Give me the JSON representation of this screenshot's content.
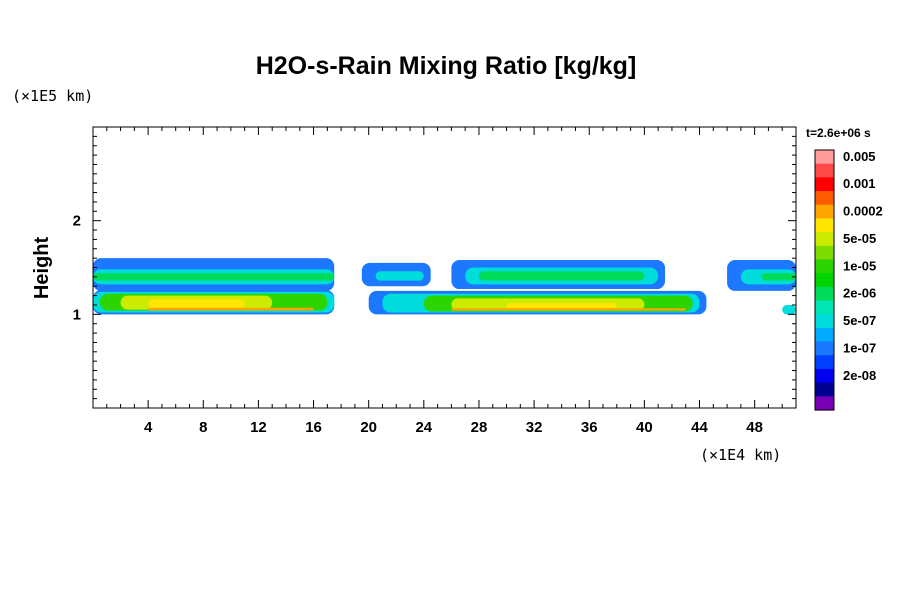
{
  "chart_data": {
    "type": "heatmap",
    "title": "H2O-s-Rain Mixing Ratio [kg/kg]",
    "ylabel": "Height",
    "yunit": "(×1E5 km)",
    "xunit": "(×1E4 km)",
    "time_label": "t=2.6e+06 s",
    "xlim": [
      0,
      51
    ],
    "ylim": [
      0,
      3
    ],
    "xticks": [
      4,
      8,
      12,
      16,
      20,
      24,
      28,
      32,
      36,
      40,
      44,
      48
    ],
    "yticks": [
      1,
      2
    ],
    "xtick_labels": [
      "4",
      "8",
      "12",
      "16",
      "20",
      "24",
      "28",
      "32",
      "36",
      "40",
      "44",
      "48"
    ],
    "ytick_labels": [
      "1",
      "2"
    ],
    "colorbar": {
      "levels": [
        {
          "color": "#ff9c9c",
          "label": "0.005"
        },
        {
          "color": "#ff4a4a",
          "label": ""
        },
        {
          "color": "#ff0000",
          "label": "0.001"
        },
        {
          "color": "#ff5a00",
          "label": ""
        },
        {
          "color": "#ffa500",
          "label": "0.0002"
        },
        {
          "color": "#ffe600",
          "label": ""
        },
        {
          "color": "#cbec00",
          "label": "5e-05"
        },
        {
          "color": "#7cdc00",
          "label": ""
        },
        {
          "color": "#2cd400",
          "label": "1e-05"
        },
        {
          "color": "#00d400",
          "label": ""
        },
        {
          "color": "#00dc5a",
          "label": "2e-06"
        },
        {
          "color": "#00e6b4",
          "label": ""
        },
        {
          "color": "#00dcdc",
          "label": "5e-07"
        },
        {
          "color": "#00aaff",
          "label": ""
        },
        {
          "color": "#1c78ff",
          "label": "1e-07"
        },
        {
          "color": "#0040ff",
          "label": ""
        },
        {
          "color": "#0000f0",
          "label": "2e-08"
        },
        {
          "color": "#000090",
          "label": ""
        },
        {
          "color": "#7800b4",
          "label": ""
        }
      ]
    },
    "regions": [
      {
        "x": [
          0.0,
          17.5
        ],
        "y": [
          1.25,
          1.6
        ],
        "level": "1e-07",
        "color": "#1c78ff"
      },
      {
        "x": [
          0.0,
          17.5
        ],
        "y": [
          1.32,
          1.48
        ],
        "level": "5e-07",
        "color": "#00dcdc"
      },
      {
        "x": [
          0.0,
          17.5
        ],
        "y": [
          1.36,
          1.44
        ],
        "level": "2e-06",
        "color": "#00dc5a"
      },
      {
        "x": [
          0.0,
          17.5
        ],
        "y": [
          1.0,
          1.26
        ],
        "level": "1e-07",
        "color": "#1c78ff"
      },
      {
        "x": [
          0.0,
          17.5
        ],
        "y": [
          1.02,
          1.24
        ],
        "level": "5e-07",
        "color": "#00dcdc"
      },
      {
        "x": [
          0.5,
          17.0
        ],
        "y": [
          1.04,
          1.22
        ],
        "level": "1e-05",
        "color": "#2cd400"
      },
      {
        "x": [
          2.0,
          13.0
        ],
        "y": [
          1.05,
          1.2
        ],
        "level": "5e-05",
        "color": "#cbec00"
      },
      {
        "x": [
          4.0,
          11.0
        ],
        "y": [
          1.06,
          1.16
        ],
        "level": "0.0002",
        "color": "#ffe600"
      },
      {
        "x": [
          4.0,
          16.0
        ],
        "y": [
          1.04,
          1.07
        ],
        "level": "0.0002",
        "color": "#ffa500"
      },
      {
        "x": [
          19.5,
          24.5
        ],
        "y": [
          1.3,
          1.55
        ],
        "level": "1e-07",
        "color": "#1c78ff"
      },
      {
        "x": [
          20.5,
          24.0
        ],
        "y": [
          1.36,
          1.46
        ],
        "level": "5e-07",
        "color": "#00dcdc"
      },
      {
        "x": [
          26.0,
          41.5
        ],
        "y": [
          1.27,
          1.58
        ],
        "level": "1e-07",
        "color": "#1c78ff"
      },
      {
        "x": [
          27.0,
          41.0
        ],
        "y": [
          1.32,
          1.5
        ],
        "level": "5e-07",
        "color": "#00dcdc"
      },
      {
        "x": [
          28.0,
          40.0
        ],
        "y": [
          1.36,
          1.46
        ],
        "level": "2e-06",
        "color": "#00dc5a"
      },
      {
        "x": [
          20.0,
          44.5
        ],
        "y": [
          1.0,
          1.25
        ],
        "level": "1e-07",
        "color": "#1c78ff"
      },
      {
        "x": [
          21.0,
          44.0
        ],
        "y": [
          1.02,
          1.22
        ],
        "level": "5e-07",
        "color": "#00dcdc"
      },
      {
        "x": [
          24.0,
          43.5
        ],
        "y": [
          1.03,
          1.2
        ],
        "level": "1e-05",
        "color": "#2cd400"
      },
      {
        "x": [
          26.0,
          40.0
        ],
        "y": [
          1.04,
          1.17
        ],
        "level": "5e-05",
        "color": "#cbec00"
      },
      {
        "x": [
          30.0,
          38.0
        ],
        "y": [
          1.05,
          1.12
        ],
        "level": "0.0002",
        "color": "#ffe600"
      },
      {
        "x": [
          26.0,
          43.0
        ],
        "y": [
          1.04,
          1.065
        ],
        "level": "0.0002",
        "color": "#ffa500"
      },
      {
        "x": [
          46.0,
          51.0
        ],
        "y": [
          1.25,
          1.58
        ],
        "level": "1e-07",
        "color": "#1c78ff"
      },
      {
        "x": [
          47.0,
          51.0
        ],
        "y": [
          1.32,
          1.48
        ],
        "level": "5e-07",
        "color": "#00dcdc"
      },
      {
        "x": [
          48.5,
          51.0
        ],
        "y": [
          1.36,
          1.44
        ],
        "level": "2e-06",
        "color": "#00dc5a"
      },
      {
        "x": [
          50.0,
          51.0
        ],
        "y": [
          1.0,
          1.1
        ],
        "level": "5e-07",
        "color": "#00dcdc"
      }
    ]
  }
}
